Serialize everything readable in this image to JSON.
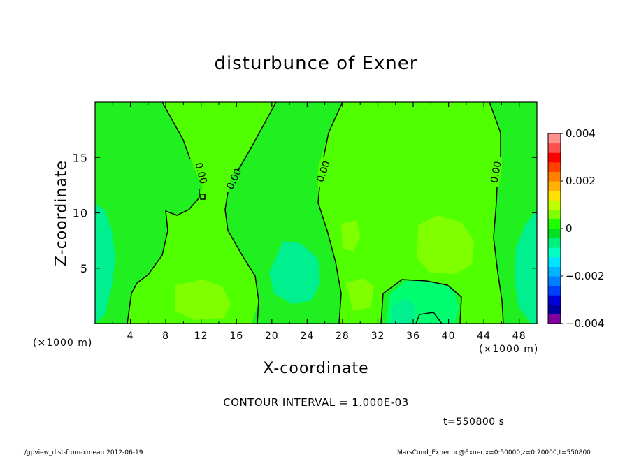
{
  "chart_data": {
    "type": "heatmap",
    "title": "disturbunce of Exner",
    "xlabel": "X-coordinate",
    "ylabel": "Z-coordinate",
    "x_unit": "(×1000 m)",
    "y_unit": "(×1000 m)",
    "xlim": [
      0,
      50
    ],
    "ylim": [
      0,
      20
    ],
    "x_ticks": [
      4,
      8,
      12,
      16,
      20,
      24,
      28,
      32,
      36,
      40,
      44,
      48
    ],
    "y_ticks": [
      5,
      10,
      15
    ],
    "contour_labels": [
      "0.00",
      "0.00",
      "0.00",
      "0.00"
    ],
    "contour_interval_text": "CONTOUR INTERVAL = 1.000E-03",
    "time_text": "t=550800 s",
    "colorbar": {
      "range": [
        -0.004,
        0.004
      ],
      "tick_labels": [
        "0.004",
        "0.002",
        "0",
        "−0.002",
        "−0.004"
      ],
      "tick_values": [
        0.004,
        0.002,
        0,
        -0.002,
        -0.004
      ],
      "colors": [
        "#8000a0",
        "#0000a0",
        "#0000d8",
        "#0040ff",
        "#0080ff",
        "#00b4ff",
        "#00e4ff",
        "#00ffc0",
        "#00f080",
        "#00e020",
        "#20ff00",
        "#80ff00",
        "#c0ff00",
        "#ffe000",
        "#ffb000",
        "#ff8000",
        "#ff4000",
        "#ff0000",
        "#ff5050",
        "#ff9090"
      ]
    },
    "fill_colors": {
      "background_positive": "#20f020",
      "weak_positive": "#50ff00",
      "positive": "#80ff00",
      "weak_negative": "#00ff50",
      "negative": "#00f090"
    }
  },
  "footer": {
    "left": "./gpview_dist-from-xmean  2012-06-19",
    "right": "MarsCond_Exner.nc@Exner,x=0:50000,z=0:20000,t=550800"
  }
}
